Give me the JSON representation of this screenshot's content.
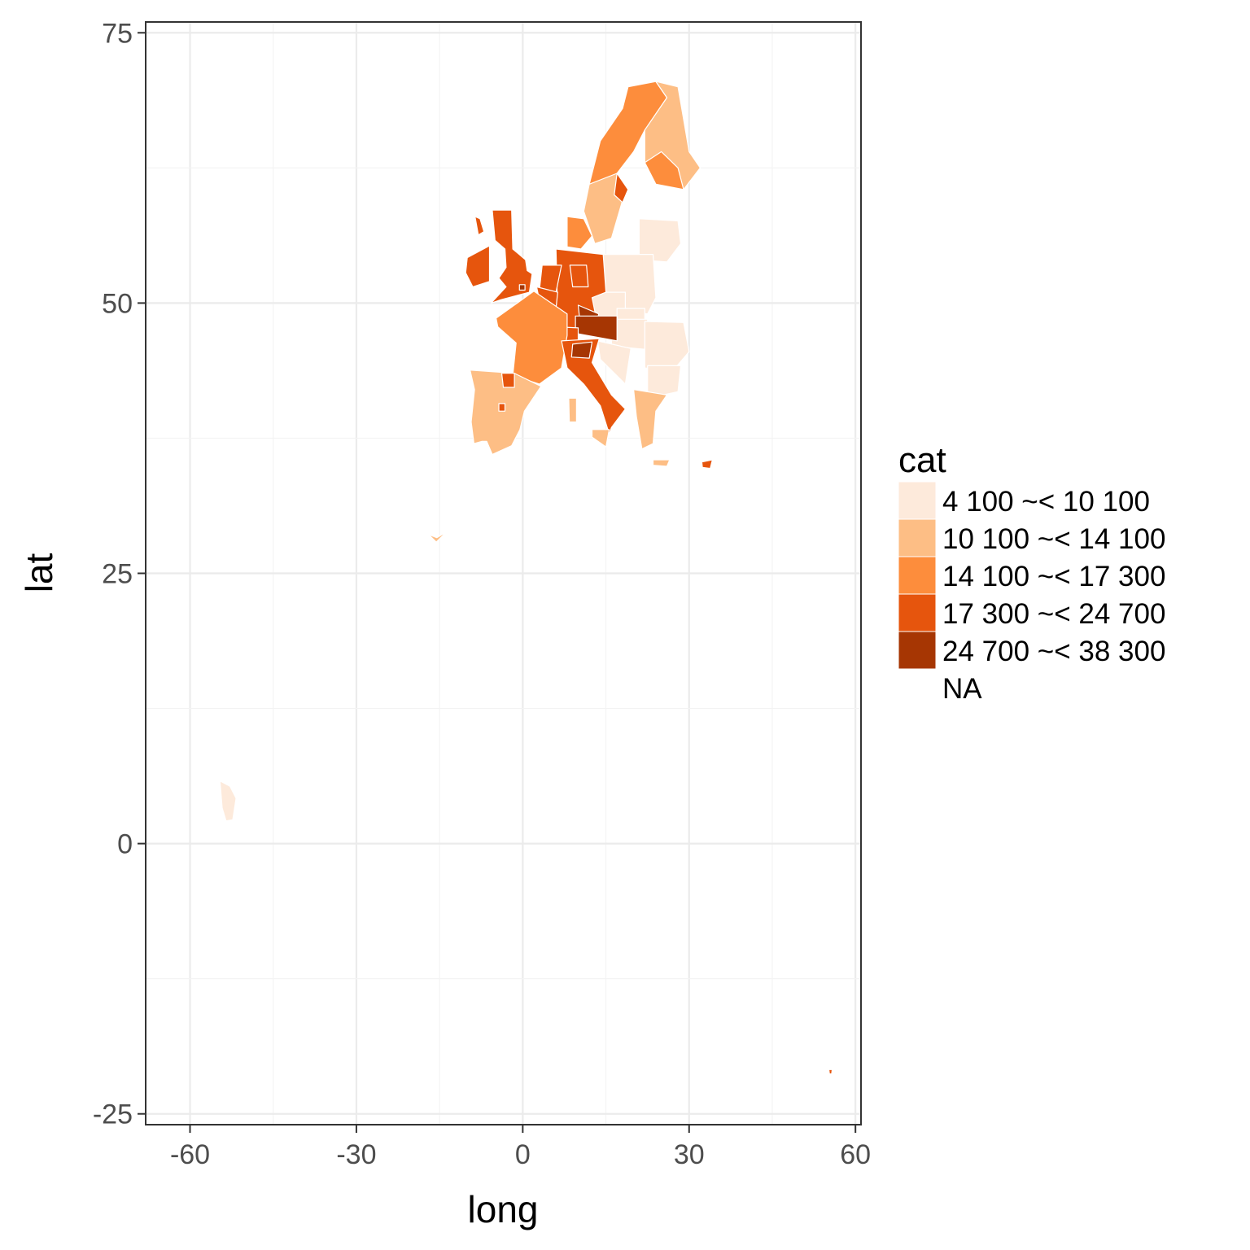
{
  "chart_data": {
    "type": "map",
    "xlabel": "long",
    "ylabel": "lat",
    "xlim": [
      -68,
      61
    ],
    "ylim": [
      -26,
      76
    ],
    "x_ticks": [
      -60,
      -30,
      0,
      30,
      60
    ],
    "x_tick_labels": [
      "-60",
      "-30",
      "0",
      "30",
      "60"
    ],
    "y_ticks": [
      -25,
      0,
      25,
      50,
      75
    ],
    "y_tick_labels": [
      "-25",
      "0",
      "25",
      "50",
      "75"
    ],
    "grid": true,
    "legend": {
      "title": "cat",
      "placement": "right",
      "entries": [
        {
          "label": "4 100 ~< 10 100",
          "color": "#fdeadb"
        },
        {
          "label": "10 100 ~< 14 100",
          "color": "#fdbe85"
        },
        {
          "label": "14 100 ~< 17 300",
          "color": "#fd8d3c"
        },
        {
          "label": "17 300 ~< 24 700",
          "color": "#e6550d"
        },
        {
          "label": "24 700 ~< 38 300",
          "color": "#a63603"
        },
        {
          "label": "NA",
          "color": "#ffffff"
        }
      ]
    },
    "regions": [
      {
        "category": 2,
        "points": [
          [
            18,
            68
          ],
          [
            19,
            70
          ],
          [
            24,
            70.5
          ],
          [
            26,
            69
          ],
          [
            22,
            66
          ],
          [
            20,
            64
          ],
          [
            17,
            62
          ],
          [
            15,
            60
          ],
          [
            12,
            61
          ],
          [
            14,
            65
          ]
        ]
      },
      {
        "category": 1,
        "points": [
          [
            24,
            70.5
          ],
          [
            28,
            70
          ],
          [
            29,
            67
          ],
          [
            30,
            64
          ],
          [
            32,
            62.5
          ],
          [
            29,
            60.5
          ],
          [
            24,
            61
          ],
          [
            22,
            63
          ],
          [
            22,
            66
          ],
          [
            26,
            69
          ]
        ]
      },
      {
        "category": 2,
        "points": [
          [
            22,
            63
          ],
          [
            24,
            61
          ],
          [
            29,
            60.5
          ],
          [
            28,
            62.5
          ],
          [
            25,
            64
          ]
        ]
      },
      {
        "category": 1,
        "points": [
          [
            12,
            61
          ],
          [
            17,
            62
          ],
          [
            18,
            59.5
          ],
          [
            16,
            56
          ],
          [
            13,
            55.5
          ],
          [
            11,
            58.5
          ]
        ]
      },
      {
        "category": 3,
        "points": [
          [
            17,
            62
          ],
          [
            19,
            60.5
          ],
          [
            18,
            59.3
          ],
          [
            16.5,
            60
          ]
        ]
      },
      {
        "category": 2,
        "points": [
          [
            8,
            58
          ],
          [
            11,
            57.8
          ],
          [
            12.5,
            56.2
          ],
          [
            10.5,
            55
          ],
          [
            8,
            55.2
          ]
        ]
      },
      {
        "category": 0,
        "points": [
          [
            21,
            57.8
          ],
          [
            28,
            57.6
          ],
          [
            28.5,
            55.5
          ],
          [
            26,
            53.8
          ],
          [
            21,
            54
          ]
        ]
      },
      {
        "category": 0,
        "points": [
          [
            14,
            54.5
          ],
          [
            23.5,
            54.5
          ],
          [
            24,
            50.5
          ],
          [
            22.5,
            49
          ],
          [
            14.5,
            49.5
          ]
        ]
      },
      {
        "category": 0,
        "points": [
          [
            12,
            51
          ],
          [
            18.5,
            51
          ],
          [
            18.5,
            48.8
          ],
          [
            12.5,
            48.5
          ]
        ]
      },
      {
        "category": 0,
        "points": [
          [
            17,
            49.5
          ],
          [
            22,
            49.5
          ],
          [
            22,
            48
          ],
          [
            17,
            47.5
          ]
        ]
      },
      {
        "category": 0,
        "points": [
          [
            16,
            48.5
          ],
          [
            22.5,
            48.5
          ],
          [
            22.5,
            45.7
          ],
          [
            16,
            46
          ]
        ]
      },
      {
        "category": 0,
        "points": [
          [
            22,
            48.3
          ],
          [
            29,
            48.2
          ],
          [
            30,
            45.5
          ],
          [
            27,
            43.7
          ],
          [
            22,
            44
          ]
        ]
      },
      {
        "category": 0,
        "points": [
          [
            22.5,
            44.2
          ],
          [
            28.5,
            44.2
          ],
          [
            28,
            41.8
          ],
          [
            22.5,
            41.2
          ]
        ]
      },
      {
        "category": 0,
        "points": [
          [
            13.5,
            46.5
          ],
          [
            19.5,
            45.8
          ],
          [
            18.5,
            42.5
          ],
          [
            14,
            44.8
          ]
        ]
      },
      {
        "category": 1,
        "points": [
          [
            20,
            42
          ],
          [
            26,
            41.5
          ],
          [
            24,
            40
          ],
          [
            23.5,
            37
          ],
          [
            21.5,
            36.5
          ],
          [
            20.5,
            39.5
          ]
        ]
      },
      {
        "category": 1,
        "points": [
          [
            23.5,
            35.5
          ],
          [
            26.5,
            35.5
          ],
          [
            26,
            34.9
          ],
          [
            23.5,
            35
          ]
        ]
      },
      {
        "category": 3,
        "points": [
          [
            32.3,
            35.3
          ],
          [
            34.2,
            35.5
          ],
          [
            33.8,
            34.7
          ],
          [
            32.4,
            34.8
          ]
        ]
      },
      {
        "category": 3,
        "points": [
          [
            6,
            55
          ],
          [
            14.5,
            54.5
          ],
          [
            15,
            51
          ],
          [
            12.5,
            50.5
          ],
          [
            13.5,
            48
          ],
          [
            10,
            47.5
          ],
          [
            7.5,
            47.6
          ],
          [
            6,
            49.5
          ],
          [
            6.2,
            51
          ]
        ]
      },
      {
        "category": 3,
        "points": [
          [
            8.5,
            53.5
          ],
          [
            11.5,
            53.5
          ],
          [
            11.8,
            51.5
          ],
          [
            9,
            51.5
          ]
        ]
      },
      {
        "category": 4,
        "points": [
          [
            10,
            49.8
          ],
          [
            13.7,
            49
          ],
          [
            13,
            47.4
          ],
          [
            10.5,
            47.4
          ]
        ]
      },
      {
        "category": 3,
        "points": [
          [
            3.5,
            53.5
          ],
          [
            7,
            53.5
          ],
          [
            6,
            51
          ],
          [
            3,
            51.2
          ]
        ]
      },
      {
        "category": 3,
        "points": [
          [
            2.5,
            51.5
          ],
          [
            6.3,
            51
          ],
          [
            6,
            49.5
          ],
          [
            3,
            50.3
          ]
        ]
      },
      {
        "category": 4,
        "points": [
          [
            9.5,
            48.8
          ],
          [
            17,
            48.8
          ],
          [
            17,
            46.5
          ],
          [
            9.5,
            47.2
          ]
        ]
      },
      {
        "category": 3,
        "points": [
          [
            6,
            47.8
          ],
          [
            10,
            47.7
          ],
          [
            10,
            46
          ],
          [
            6,
            46.2
          ]
        ]
      },
      {
        "category": 2,
        "points": [
          [
            -4.8,
            48.6
          ],
          [
            2,
            51.1
          ],
          [
            8,
            49
          ],
          [
            8,
            47
          ],
          [
            7,
            44
          ],
          [
            3,
            42.5
          ],
          [
            -1.8,
            43.3
          ],
          [
            -1.2,
            46.3
          ],
          [
            -4.5,
            47.8
          ]
        ]
      },
      {
        "category": 3,
        "points": [
          [
            7,
            46.5
          ],
          [
            13.8,
            46.7
          ],
          [
            12.5,
            44.5
          ],
          [
            16,
            41.5
          ],
          [
            18.5,
            40.2
          ],
          [
            16,
            38.5
          ],
          [
            15.6,
            37.9
          ],
          [
            14,
            40.5
          ],
          [
            11,
            42.5
          ],
          [
            8,
            44
          ]
        ]
      },
      {
        "category": 4,
        "points": [
          [
            9,
            46.2
          ],
          [
            12.5,
            46.4
          ],
          [
            12,
            44.9
          ],
          [
            8.8,
            45
          ]
        ]
      },
      {
        "category": 1,
        "points": [
          [
            12.5,
            38.3
          ],
          [
            15.6,
            38.3
          ],
          [
            15,
            36.7
          ],
          [
            12.5,
            37.6
          ]
        ]
      },
      {
        "category": 1,
        "points": [
          [
            8.3,
            41.2
          ],
          [
            9.7,
            41.2
          ],
          [
            9.7,
            39
          ],
          [
            8.4,
            39
          ]
        ]
      },
      {
        "category": 1,
        "points": [
          [
            -9.5,
            43.8
          ],
          [
            -1.5,
            43.5
          ],
          [
            3.3,
            42.3
          ],
          [
            0.3,
            40
          ],
          [
            -0.5,
            38.3
          ],
          [
            -2,
            36.8
          ],
          [
            -5.5,
            36
          ],
          [
            -6.5,
            37.2
          ],
          [
            -7.4,
            37.2
          ],
          [
            -8.8,
            37
          ],
          [
            -9.3,
            39
          ],
          [
            -8.7,
            42
          ]
        ]
      },
      {
        "category": 3,
        "points": [
          [
            -3.8,
            43.5
          ],
          [
            -1.5,
            43.5
          ],
          [
            -1.5,
            42.2
          ],
          [
            -3.5,
            42.2
          ]
        ]
      },
      {
        "category": 3,
        "points": [
          [
            -4.3,
            40.7
          ],
          [
            -3.2,
            40.7
          ],
          [
            -3.2,
            40
          ],
          [
            -4.3,
            40
          ]
        ]
      },
      {
        "category": 3,
        "points": [
          [
            -5.5,
            58.6
          ],
          [
            -2,
            58.6
          ],
          [
            -1.8,
            55
          ],
          [
            0.5,
            54
          ],
          [
            0.8,
            53
          ],
          [
            1.7,
            52.7
          ],
          [
            1.2,
            51
          ],
          [
            -4,
            50.3
          ],
          [
            -5.7,
            50
          ],
          [
            -3,
            51.5
          ],
          [
            -4.3,
            52.3
          ],
          [
            -3,
            53.3
          ],
          [
            -3.2,
            55
          ],
          [
            -5,
            55.8
          ]
        ]
      },
      {
        "category": 4,
        "points": [
          [
            -0.6,
            51.7
          ],
          [
            0.4,
            51.7
          ],
          [
            0.4,
            51.2
          ],
          [
            -0.6,
            51.2
          ]
        ]
      },
      {
        "category": 3,
        "points": [
          [
            -10,
            54.2
          ],
          [
            -6,
            55.3
          ],
          [
            -6,
            52
          ],
          [
            -9,
            51.5
          ],
          [
            -10.3,
            52.8
          ]
        ]
      },
      {
        "category": 3,
        "points": [
          [
            -8.6,
            58
          ],
          [
            -7.7,
            57.8
          ],
          [
            -7,
            56.6
          ],
          [
            -8,
            56.3
          ]
        ]
      },
      {
        "category": 0,
        "points": [
          [
            -54.6,
            5.8
          ],
          [
            -52.8,
            5.3
          ],
          [
            -51.7,
            4.2
          ],
          [
            -52.3,
            2.2
          ],
          [
            -53.5,
            2.1
          ],
          [
            -54.2,
            3.3
          ]
        ]
      },
      {
        "category": 1,
        "points": [
          [
            -17,
            28.6
          ],
          [
            -15.5,
            28.3
          ],
          [
            -14.5,
            28.6
          ],
          [
            -13.8,
            28.8
          ],
          [
            -15.6,
            27.9
          ]
        ]
      },
      {
        "category": 3,
        "points": [
          [
            55.2,
            -20.9
          ],
          [
            55.8,
            -20.9
          ],
          [
            55.7,
            -21.3
          ],
          [
            55.3,
            -21.3
          ]
        ]
      },
      {
        "category": 5,
        "points": [
          [
            -61.7,
            16.4
          ],
          [
            -61.2,
            16.4
          ],
          [
            -61.3,
            15.9
          ],
          [
            -61.7,
            16.0
          ]
        ]
      }
    ]
  }
}
